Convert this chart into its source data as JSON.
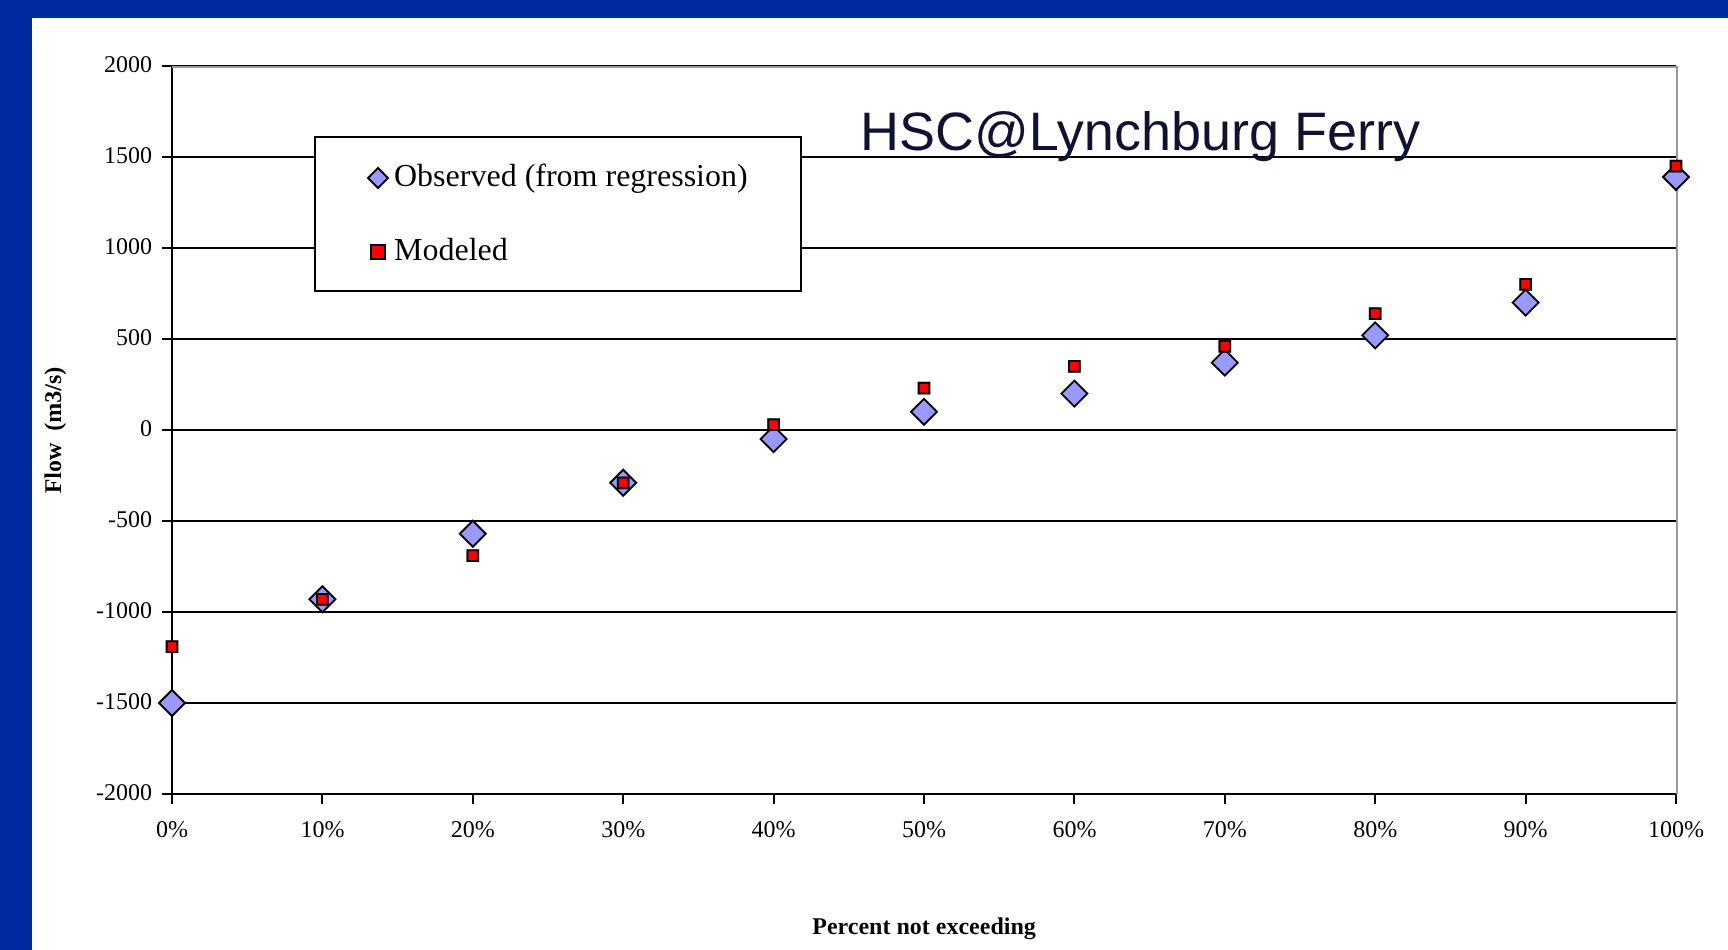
{
  "chart_data": {
    "type": "scatter",
    "title": "HSC@Lynchburg Ferry",
    "xlabel": "Percent not exceeding",
    "ylabel": "Flow  (m3/s)",
    "x": [
      0,
      10,
      20,
      30,
      40,
      50,
      60,
      70,
      80,
      90,
      100
    ],
    "series": [
      {
        "name": "Observed (from regression)",
        "color": "#9999ff",
        "marker": "diamond",
        "values": [
          -1500,
          -930,
          -570,
          -290,
          -50,
          100,
          200,
          370,
          520,
          700,
          1390
        ]
      },
      {
        "name": "Modeled",
        "color": "#ff0000",
        "marker": "square",
        "values": [
          -1190,
          -930,
          -690,
          -290,
          30,
          230,
          350,
          460,
          640,
          800,
          1450
        ]
      }
    ],
    "xlim": [
      0,
      100
    ],
    "xticks": [
      {
        "value": 0,
        "label": "0%"
      },
      {
        "value": 10,
        "label": "10%"
      },
      {
        "value": 20,
        "label": "20%"
      },
      {
        "value": 30,
        "label": "30%"
      },
      {
        "value": 40,
        "label": "40%"
      },
      {
        "value": 50,
        "label": "50%"
      },
      {
        "value": 60,
        "label": "60%"
      },
      {
        "value": 70,
        "label": "70%"
      },
      {
        "value": 80,
        "label": "80%"
      },
      {
        "value": 90,
        "label": "90%"
      },
      {
        "value": 100,
        "label": "100%"
      }
    ],
    "ylim": [
      -2000,
      2000
    ],
    "yticks": [
      -2000,
      -1500,
      -1000,
      -500,
      0,
      500,
      1000,
      1500,
      2000
    ],
    "grid": "y",
    "legend": "top left"
  }
}
